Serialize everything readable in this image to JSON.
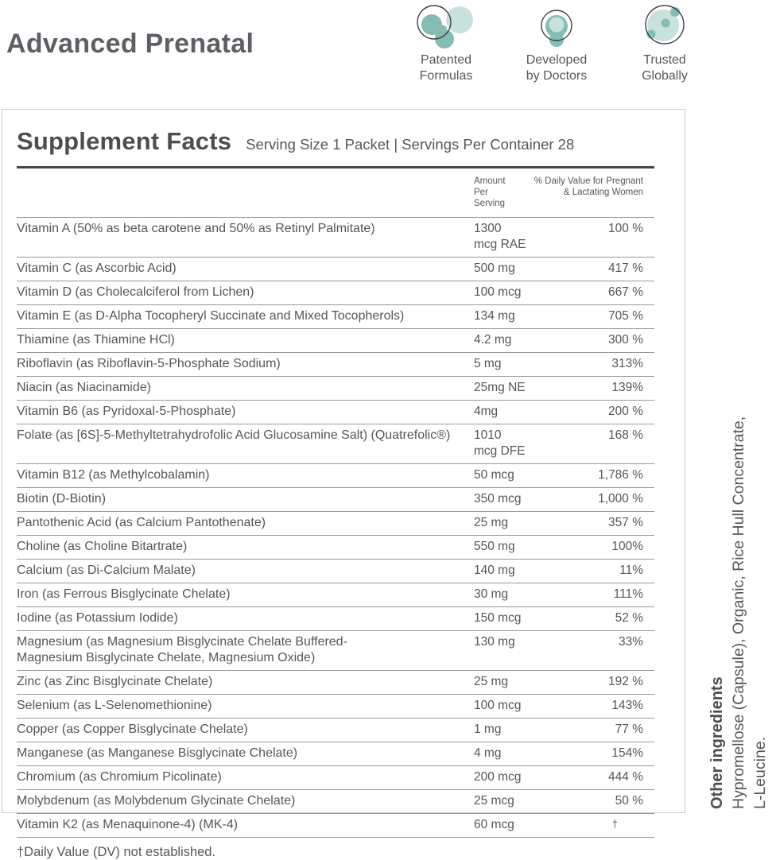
{
  "header": {
    "title": "Advanced Prenatal",
    "badges": [
      {
        "icon": "molecule-blobs-icon",
        "label": "Patented\nFormulas"
      },
      {
        "icon": "cell-icon",
        "label": "Developed\nby Doctors"
      },
      {
        "icon": "globe-dots-icon",
        "label": "Trusted\nGlobally"
      }
    ]
  },
  "panel": {
    "title": "Supplement Facts",
    "serving_info": "Serving Size 1 Packet | Servings Per Container 28",
    "columns": {
      "amount": "Amount Per\nServing",
      "daily_value": "% Daily Value for Pregnant\n& Lactating Women"
    },
    "rows": [
      {
        "name": "Vitamin A (50% as beta carotene and 50% as Retinyl Palmitate)",
        "amount": "1300 mcg RAE",
        "dv": "100 %"
      },
      {
        "name": "Vitamin C (as Ascorbic Acid)",
        "amount": "500 mg",
        "dv": "417 %"
      },
      {
        "name": "Vitamin D (as Cholecalciferol from Lichen)",
        "amount": "100 mcg",
        "dv": "667 %"
      },
      {
        "name": "Vitamin E (as D-Alpha Tocopheryl Succinate and Mixed Tocopherols)",
        "amount": "134 mg",
        "dv": "705 %"
      },
      {
        "name": "Thiamine (as Thiamine HCl)",
        "amount": "4.2 mg",
        "dv": "300 %"
      },
      {
        "name": "Riboflavin (as Riboflavin-5-Phosphate Sodium)",
        "amount": "5 mg",
        "dv": "313%"
      },
      {
        "name": "Niacin (as Niacinamide)",
        "amount": "25mg NE",
        "dv": "139%"
      },
      {
        "name": "Vitamin B6 (as Pyridoxal-5-Phosphate)",
        "amount": "4mg",
        "dv": "200 %"
      },
      {
        "name": "Folate (as [6S]-5-Methyltetrahydrofolic Acid Glucosamine Salt) (Quatrefolic®)",
        "amount": "1010 mcg DFE",
        "dv": "168 %"
      },
      {
        "name": "Vitamin B12 (as Methylcobalamin)",
        "amount": "50 mcg",
        "dv": "1,786 %"
      },
      {
        "name": "Biotin (D-Biotin)",
        "amount": "350 mcg",
        "dv": "1,000 %"
      },
      {
        "name": "Pantothenic Acid (as Calcium Pantothenate)",
        "amount": "25 mg",
        "dv": "357 %"
      },
      {
        "name": "Choline (as Choline Bitartrate)",
        "amount": "550 mg",
        "dv": "100%"
      },
      {
        "name": "Calcium (as Di-Calcium Malate)",
        "amount": "140 mg",
        "dv": "11%"
      },
      {
        "name": "Iron (as Ferrous Bisglycinate Chelate)",
        "amount": "30 mg",
        "dv": "111%"
      },
      {
        "name": "Iodine (as Potassium Iodide)",
        "amount": "150 mcg",
        "dv": "52 %"
      },
      {
        "name": "Magnesium (as Magnesium Bisglycinate Chelate Buffered-\nMagnesium Bisglycinate Chelate, Magnesium Oxide)",
        "amount": "130 mg",
        "dv": "33%"
      },
      {
        "name": "Zinc (as Zinc Bisglycinate Chelate)",
        "amount": "25 mg",
        "dv": "192 %"
      },
      {
        "name": "Selenium (as L-Selenomethionine)",
        "amount": "100 mcg",
        "dv": "143%"
      },
      {
        "name": "Copper (as Copper Bisglycinate Chelate)",
        "amount": "1 mg",
        "dv": "77 %"
      },
      {
        "name": "Manganese (as Manganese Bisglycinate Chelate)",
        "amount": "4 mg",
        "dv": "154%"
      },
      {
        "name": "Chromium (as Chromium Picolinate)",
        "amount": "200 mcg",
        "dv": "444 %"
      },
      {
        "name": "Molybdenum (as Molybdenum Glycinate Chelate)",
        "amount": "25 mcg",
        "dv": "50 %"
      },
      {
        "name": "Vitamin K2 (as Menaquinone-4) (MK-4)",
        "amount": "60 mcg",
        "dv": "†"
      }
    ],
    "footnote": "†Daily Value (DV) not established."
  },
  "side_note": {
    "title": "Other ingredients",
    "text": "Hypromellose (Capsule), Organic, Rice Hull Concentrate,\nL-Leucine."
  },
  "colors": {
    "ink": "#53575a",
    "teal_med": "#85bcb4",
    "teal_light": "#c9e1dd",
    "outline": "#3c4043",
    "line": "#95989b",
    "rule": "#43474a",
    "border": "#c9cbcc"
  }
}
